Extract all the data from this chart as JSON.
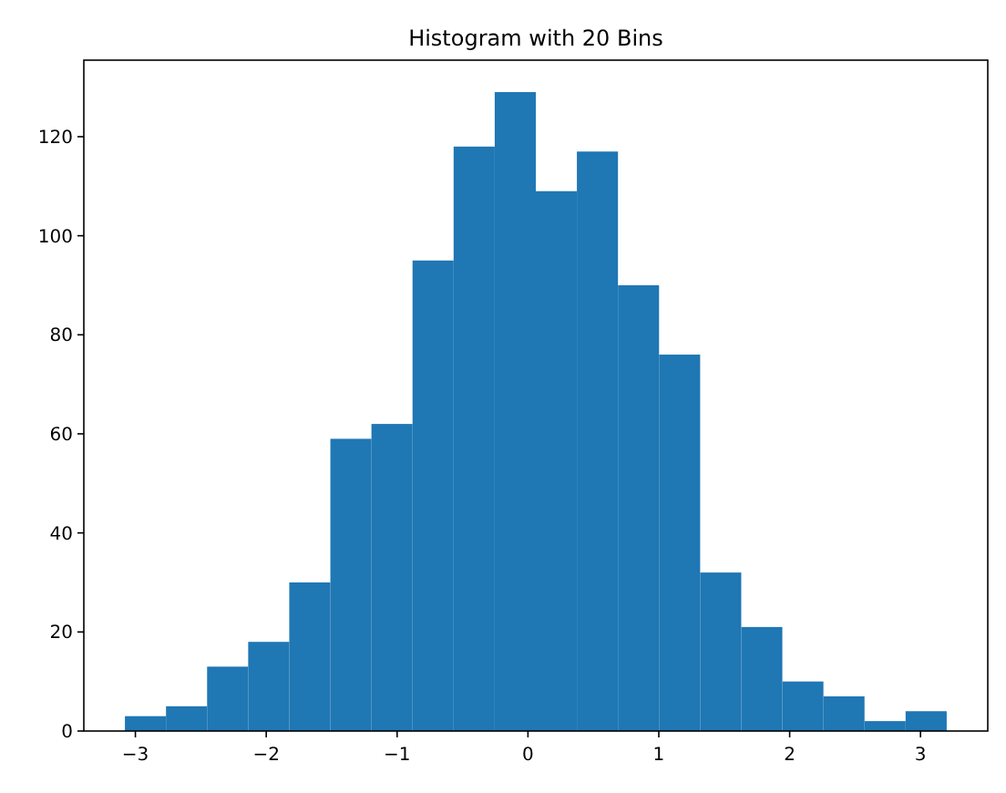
{
  "chart_data": {
    "type": "histogram",
    "title": "Histogram with 20 Bins",
    "bins": [
      -3.08,
      -2.766,
      -2.452,
      -2.138,
      -1.824,
      -1.51,
      -1.196,
      -0.882,
      -0.568,
      -0.254,
      0.06,
      0.374,
      0.688,
      1.002,
      1.316,
      1.63,
      1.944,
      2.258,
      2.572,
      2.886,
      3.2
    ],
    "values": [
      3,
      5,
      13,
      18,
      30,
      59,
      62,
      95,
      118,
      129,
      109,
      117,
      90,
      76,
      32,
      21,
      10,
      7,
      2,
      4
    ],
    "color": "#1f77b4",
    "xlim": [
      -3.394,
      3.514
    ],
    "xticks": [
      {
        "value": -3,
        "label": "−3"
      },
      {
        "value": -2,
        "label": "−2"
      },
      {
        "value": -1,
        "label": "−1"
      },
      0,
      1,
      2,
      3
    ],
    "ylim": [
      0,
      135.45
    ],
    "yticks": [
      0,
      20,
      40,
      60,
      80,
      100,
      120
    ]
  }
}
